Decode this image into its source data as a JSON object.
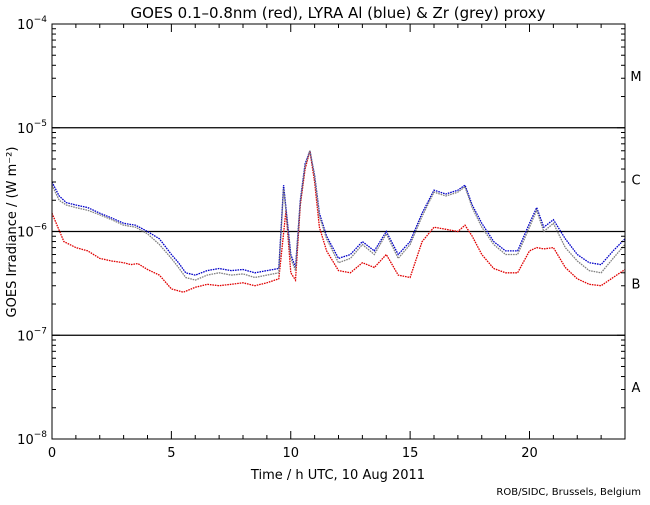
{
  "chart_data": {
    "type": "line",
    "title": "GOES 0.1–0.8nm (red), LYRA Al (blue) & Zr (grey) proxy",
    "xlabel": "Time / h UTC, 10 Aug 2011",
    "ylabel": "GOES Irradiance / (W m⁻²)",
    "xlim": [
      0,
      24
    ],
    "ylim": [
      1e-08,
      0.0001
    ],
    "y_scale": "log",
    "x_ticks": [
      0,
      5,
      10,
      15,
      20
    ],
    "x_tick_labels": [
      "0",
      "5",
      "10",
      "15",
      "20"
    ],
    "y_ticks": [
      {
        "value": 1e-08,
        "base": "10",
        "exp": "−8"
      },
      {
        "value": 1e-07,
        "base": "10",
        "exp": "−7"
      },
      {
        "value": 1e-06,
        "base": "10",
        "exp": "−6"
      },
      {
        "value": 1e-05,
        "base": "10",
        "exp": "−5"
      },
      {
        "value": 0.0001,
        "base": "10",
        "exp": "−4"
      }
    ],
    "reference_lines": [
      1e-07,
      1e-06,
      1e-05
    ],
    "flare_classes": [
      {
        "label": "A",
        "center": 3.16e-08
      },
      {
        "label": "B",
        "center": 3.16e-07
      },
      {
        "label": "C",
        "center": 3.16e-06
      },
      {
        "label": "M",
        "center": 3.16e-05
      }
    ],
    "series": [
      {
        "name": "GOES 0.1-0.8nm",
        "color": "#e00000",
        "x": [
          0,
          0.5,
          1,
          1.5,
          2,
          2.5,
          3,
          3.3,
          3.6,
          4,
          4.5,
          5,
          5.5,
          6,
          6.5,
          7,
          7.5,
          8,
          8.5,
          9,
          9.5,
          9.8,
          10,
          10.2,
          10.4,
          10.6,
          10.8,
          11,
          11.2,
          11.5,
          12,
          12.5,
          13,
          13.5,
          14,
          14.5,
          15,
          15.5,
          16,
          16.5,
          17,
          17.3,
          17.6,
          18,
          18.5,
          19,
          19.5,
          20,
          20.3,
          20.6,
          21,
          21.5,
          22,
          22.5,
          23,
          23.5,
          24
        ],
        "values": [
          1.5e-06,
          8e-07,
          7e-07,
          6.5e-07,
          5.5e-07,
          5.2e-07,
          5e-07,
          4.8e-07,
          4.9e-07,
          4.3e-07,
          3.8e-07,
          2.8e-07,
          2.6e-07,
          2.9e-07,
          3.1e-07,
          3e-07,
          3.1e-07,
          3.2e-07,
          3e-07,
          3.2e-07,
          3.5e-07,
          1.6e-06,
          4e-07,
          3.4e-07,
          1.8e-06,
          4e-06,
          6e-06,
          3e-06,
          1.1e-06,
          6.5e-07,
          4.2e-07,
          4e-07,
          5e-07,
          4.5e-07,
          6e-07,
          3.8e-07,
          3.6e-07,
          8e-07,
          1.1e-06,
          1.05e-06,
          1e-06,
          1.15e-06,
          9e-07,
          6e-07,
          4.4e-07,
          4e-07,
          4e-07,
          6.5e-07,
          7e-07,
          6.8e-07,
          7e-07,
          4.5e-07,
          3.5e-07,
          3.1e-07,
          3e-07,
          3.6e-07,
          4.3e-07
        ]
      },
      {
        "name": "LYRA Al proxy",
        "color": "#0000c8",
        "x": [
          0,
          0.3,
          0.6,
          1,
          1.5,
          2,
          2.5,
          3,
          3.5,
          4,
          4.5,
          5,
          5.3,
          5.6,
          6,
          6.5,
          7,
          7.5,
          8,
          8.5,
          9,
          9.5,
          9.7,
          10,
          10.2,
          10.4,
          10.6,
          10.8,
          11,
          11.2,
          11.5,
          12,
          12.5,
          13,
          13.5,
          14,
          14.5,
          15,
          15.5,
          16,
          16.5,
          17,
          17.3,
          17.6,
          18,
          18.5,
          19,
          19.5,
          20,
          20.3,
          20.6,
          21,
          21.5,
          22,
          22.5,
          23,
          23.5,
          24
        ],
        "values": [
          3e-06,
          2.2e-06,
          1.9e-06,
          1.8e-06,
          1.7e-06,
          1.5e-06,
          1.35e-06,
          1.2e-06,
          1.15e-06,
          1e-06,
          8.5e-07,
          6e-07,
          5e-07,
          4e-07,
          3.8e-07,
          4.2e-07,
          4.4e-07,
          4.2e-07,
          4.3e-07,
          4e-07,
          4.2e-07,
          4.4e-07,
          2.8e-06,
          6e-07,
          4.5e-07,
          2e-06,
          4.5e-06,
          6e-06,
          3.5e-06,
          1.5e-06,
          9e-07,
          5.5e-07,
          6e-07,
          8e-07,
          6.5e-07,
          1e-06,
          6e-07,
          8e-07,
          1.5e-06,
          2.5e-06,
          2.3e-06,
          2.5e-06,
          2.8e-06,
          1.8e-06,
          1.2e-06,
          8e-07,
          6.5e-07,
          6.5e-07,
          1.2e-06,
          1.7e-06,
          1.1e-06,
          1.3e-06,
          8.5e-07,
          6e-07,
          5e-07,
          4.8e-07,
          6.5e-07,
          8.5e-07
        ]
      },
      {
        "name": "LYRA Zr proxy",
        "color": "#808080",
        "x": [
          0,
          0.3,
          0.6,
          1,
          1.5,
          2,
          2.5,
          3,
          3.5,
          4,
          4.5,
          5,
          5.3,
          5.6,
          6,
          6.5,
          7,
          7.5,
          8,
          8.5,
          9,
          9.5,
          9.7,
          10,
          10.2,
          10.4,
          10.6,
          10.8,
          11,
          11.2,
          11.5,
          12,
          12.5,
          13,
          13.5,
          14,
          14.5,
          15,
          15.5,
          16,
          16.5,
          17,
          17.3,
          17.6,
          18,
          18.5,
          19,
          19.5,
          20,
          20.3,
          20.6,
          21,
          21.5,
          22,
          22.5,
          23,
          23.5,
          24
        ],
        "values": [
          2.8e-06,
          2e-06,
          1.8e-06,
          1.7e-06,
          1.6e-06,
          1.45e-06,
          1.3e-06,
          1.15e-06,
          1.1e-06,
          9.5e-07,
          7.5e-07,
          5.5e-07,
          4.5e-07,
          3.6e-07,
          3.4e-07,
          3.8e-07,
          4e-07,
          3.8e-07,
          3.9e-07,
          3.6e-07,
          3.8e-07,
          4e-07,
          2.6e-06,
          5.5e-07,
          4.2e-07,
          1.9e-06,
          4.3e-06,
          6e-06,
          3.4e-06,
          1.4e-06,
          8.5e-07,
          5e-07,
          5.5e-07,
          7.5e-07,
          6e-07,
          9.5e-07,
          5.5e-07,
          7.5e-07,
          1.4e-06,
          2.4e-06,
          2.2e-06,
          2.4e-06,
          2.7e-06,
          1.7e-06,
          1.1e-06,
          7.5e-07,
          6e-07,
          6e-07,
          1.1e-06,
          1.6e-06,
          1e-06,
          1.2e-06,
          7e-07,
          5.2e-07,
          4.2e-07,
          4e-07,
          5.5e-07,
          7.5e-07
        ]
      }
    ]
  },
  "credit": "ROB/SIDC, Brussels, Belgium"
}
